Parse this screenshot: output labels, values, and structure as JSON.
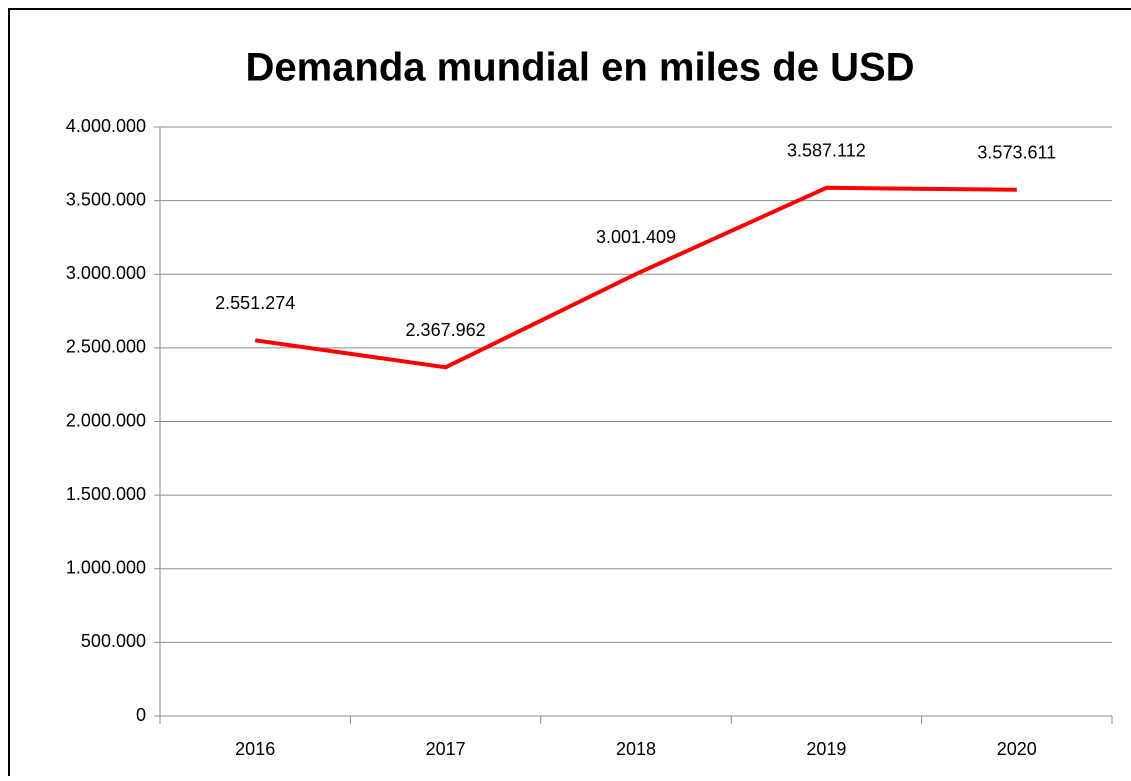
{
  "chart_data": {
    "type": "line",
    "title": "Demanda mundial en miles de USD",
    "categories": [
      "2016",
      "2017",
      "2018",
      "2019",
      "2020"
    ],
    "series": [
      {
        "name": "Demanda mundial en miles de USD",
        "color": "#ff0000",
        "values": [
          2551274,
          2367962,
          3001409,
          3587112,
          3573611
        ],
        "value_labels": [
          "2.551.274",
          "2.367.962",
          "3.001.409",
          "3.587.112",
          "3.573.611"
        ]
      }
    ],
    "ylim": [
      0,
      4000000
    ],
    "yticks": [
      0,
      {
        "value": 500000,
        "label": "500.000"
      },
      {
        "value": 1000000,
        "label": "1.000.000"
      },
      {
        "value": 1500000,
        "label": "1.500.000"
      },
      {
        "value": 2000000,
        "label": "2.000.000"
      },
      {
        "value": 2500000,
        "label": "2.500.000"
      },
      {
        "value": 3000000,
        "label": "3.000.000"
      },
      {
        "value": 3500000,
        "label": "3.500.000"
      },
      {
        "value": 4000000,
        "label": "4.000.000"
      }
    ],
    "grid": true
  }
}
